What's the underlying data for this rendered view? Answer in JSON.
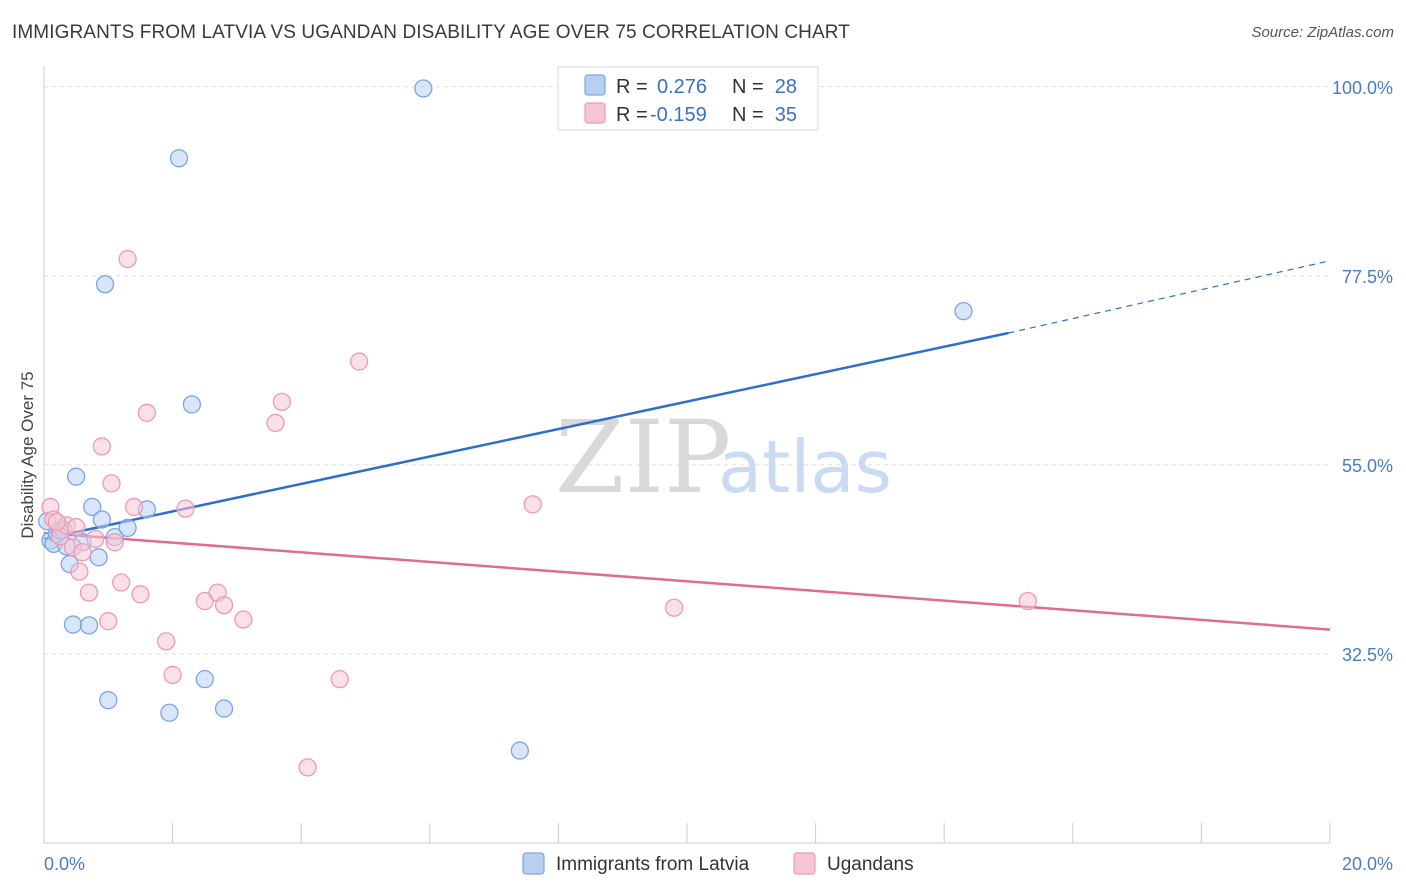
{
  "title": "IMMIGRANTS FROM LATVIA VS UGANDAN DISABILITY AGE OVER 75 CORRELATION CHART",
  "source": "Source: ZipAtlas.com",
  "watermark": {
    "zip": "ZIP",
    "atlas": "atlas"
  },
  "chart_data": {
    "type": "scatter",
    "ylabel": "Disability Age Over 75",
    "xlim": [
      0,
      20
    ],
    "ylim": [
      10,
      102
    ],
    "x_tick_labels": [
      {
        "value": 0,
        "label": "0.0%"
      },
      {
        "value": 20,
        "label": "20.0%"
      }
    ],
    "y_tick_labels": [
      {
        "value": 100,
        "label": "100.0%"
      },
      {
        "value": 77.5,
        "label": "77.5%"
      },
      {
        "value": 55,
        "label": "55.0%"
      },
      {
        "value": 32.5,
        "label": "32.5%"
      }
    ],
    "legend": [
      {
        "r_label": "R =",
        "r_value": "0.276",
        "n_label": "N =",
        "n_value": "28"
      },
      {
        "r_label": "R =",
        "r_value": "-0.159",
        "n_label": "N =",
        "n_value": "35"
      }
    ],
    "series": [
      {
        "name": "Immigrants from Latvia",
        "color": "#7aa6e6",
        "fill": "#b9cff2",
        "line_color": "#2f6fcc",
        "trend": {
          "x0": 0,
          "y0": 46.2,
          "x1": 15,
          "y1": 70.7,
          "x_ext_end": 20,
          "y_ext_end": 79.3
        },
        "points": [
          [
            0.05,
            48.3
          ],
          [
            0.1,
            46.0
          ],
          [
            0.15,
            45.6
          ],
          [
            0.2,
            46.8
          ],
          [
            0.3,
            47.3
          ],
          [
            0.4,
            43.2
          ],
          [
            0.45,
            36.0
          ],
          [
            0.5,
            53.6
          ],
          [
            0.6,
            45.8
          ],
          [
            0.7,
            35.9
          ],
          [
            0.75,
            50.0
          ],
          [
            0.85,
            44.0
          ],
          [
            0.9,
            48.5
          ],
          [
            0.95,
            76.5
          ],
          [
            1.0,
            27.0
          ],
          [
            1.1,
            46.4
          ],
          [
            1.3,
            47.5
          ],
          [
            1.6,
            49.7
          ],
          [
            1.95,
            25.5
          ],
          [
            2.1,
            91.5
          ],
          [
            2.3,
            62.2
          ],
          [
            2.5,
            29.5
          ],
          [
            2.8,
            26.0
          ],
          [
            5.9,
            99.8
          ],
          [
            7.4,
            21.0
          ],
          [
            14.3,
            73.3
          ],
          [
            0.25,
            47.2
          ],
          [
            0.35,
            45.3
          ]
        ]
      },
      {
        "name": "Ugandans",
        "color": "#ee9ab4",
        "fill": "#f7c6d4",
        "line_color": "#e06b94",
        "trend": {
          "x0": 0,
          "y0": 46.9,
          "x1": 20,
          "y1": 35.4
        },
        "points": [
          [
            0.1,
            50.0
          ],
          [
            0.15,
            48.5
          ],
          [
            0.25,
            46.5
          ],
          [
            0.35,
            47.8
          ],
          [
            0.45,
            45.2
          ],
          [
            0.55,
            42.3
          ],
          [
            0.7,
            39.8
          ],
          [
            0.8,
            46.2
          ],
          [
            0.9,
            57.2
          ],
          [
            1.0,
            36.4
          ],
          [
            1.05,
            52.8
          ],
          [
            1.1,
            45.8
          ],
          [
            1.2,
            41.0
          ],
          [
            1.3,
            79.5
          ],
          [
            1.4,
            50.0
          ],
          [
            1.5,
            39.6
          ],
          [
            1.6,
            61.2
          ],
          [
            1.9,
            34.0
          ],
          [
            2.0,
            30.0
          ],
          [
            2.2,
            49.8
          ],
          [
            2.5,
            38.8
          ],
          [
            2.7,
            39.8
          ],
          [
            2.8,
            38.3
          ],
          [
            3.1,
            36.6
          ],
          [
            3.6,
            60.0
          ],
          [
            3.7,
            62.5
          ],
          [
            4.1,
            19.0
          ],
          [
            4.6,
            29.5
          ],
          [
            4.9,
            67.3
          ],
          [
            7.6,
            50.3
          ],
          [
            9.8,
            38.0
          ],
          [
            15.3,
            38.8
          ],
          [
            0.6,
            44.6
          ],
          [
            0.5,
            47.6
          ],
          [
            0.2,
            48.2
          ]
        ]
      }
    ]
  }
}
